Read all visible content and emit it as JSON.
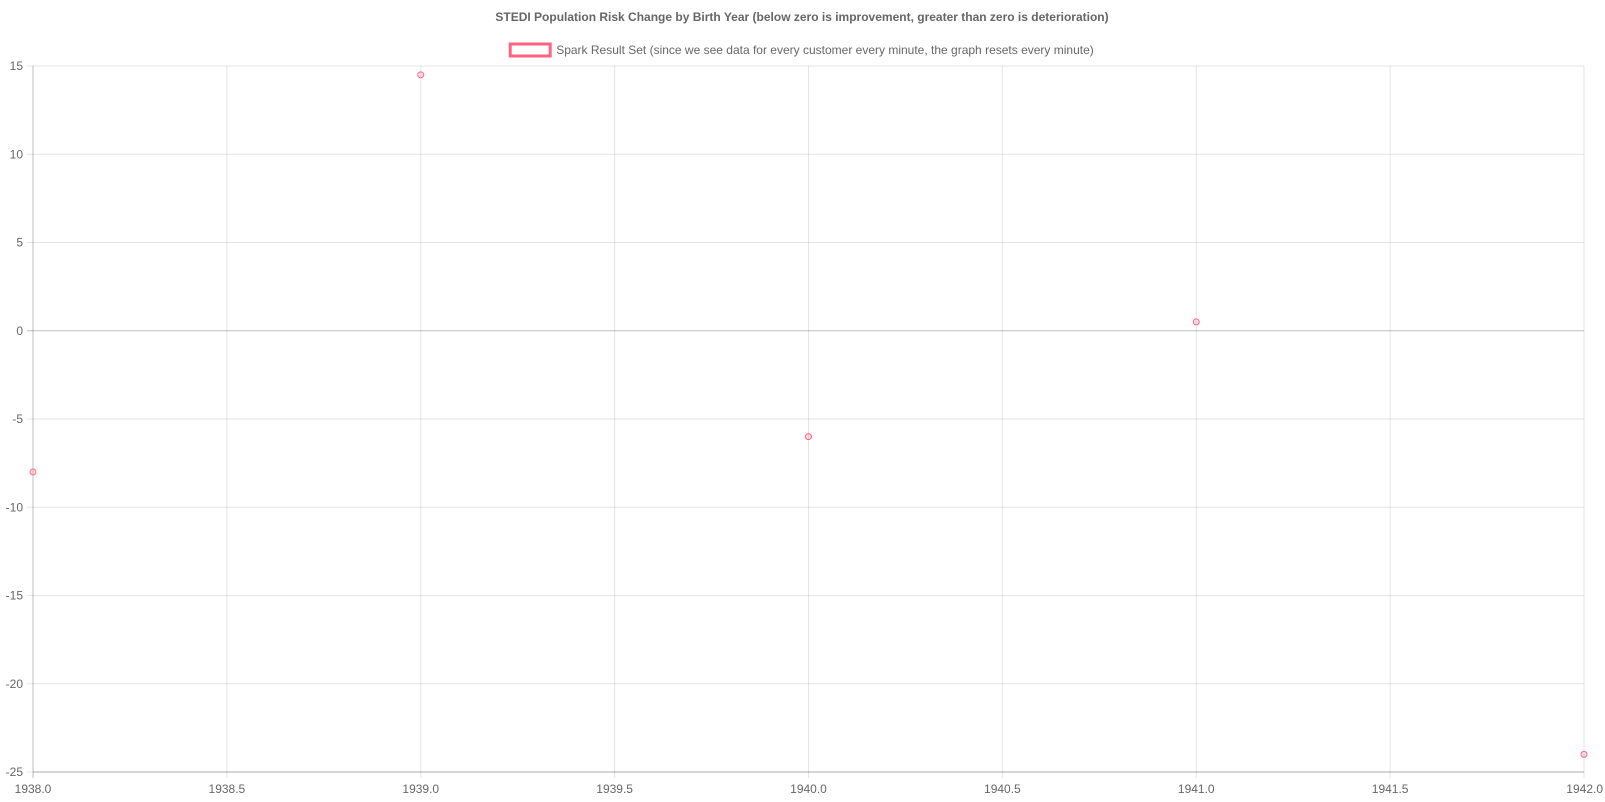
{
  "chart_data": {
    "type": "scatter",
    "title": "STEDI Population Risk Change by Birth Year (below zero is improvement, greater than zero is deterioration)",
    "xlabel": "",
    "ylabel": "",
    "xlim": [
      1938.0,
      1942.0
    ],
    "ylim": [
      -25,
      15
    ],
    "x_ticks": [
      "1938.0",
      "1938.5",
      "1939.0",
      "1939.5",
      "1940.0",
      "1940.5",
      "1941.0",
      "1941.5",
      "1942.0"
    ],
    "y_ticks": [
      "15",
      "10",
      "5",
      "0",
      "-5",
      "-10",
      "-15",
      "-20",
      "-25"
    ],
    "grid": true,
    "legend_position": "top",
    "series": [
      {
        "name": "Spark Result Set (since we see data for every customer every minute, the graph resets every minute)",
        "color": "#ff6384",
        "points": [
          {
            "x": 1938.0,
            "y": -8
          },
          {
            "x": 1939.0,
            "y": 14.5
          },
          {
            "x": 1940.0,
            "y": -6
          },
          {
            "x": 1941.0,
            "y": 0.5
          },
          {
            "x": 1942.0,
            "y": -24
          }
        ]
      }
    ]
  }
}
